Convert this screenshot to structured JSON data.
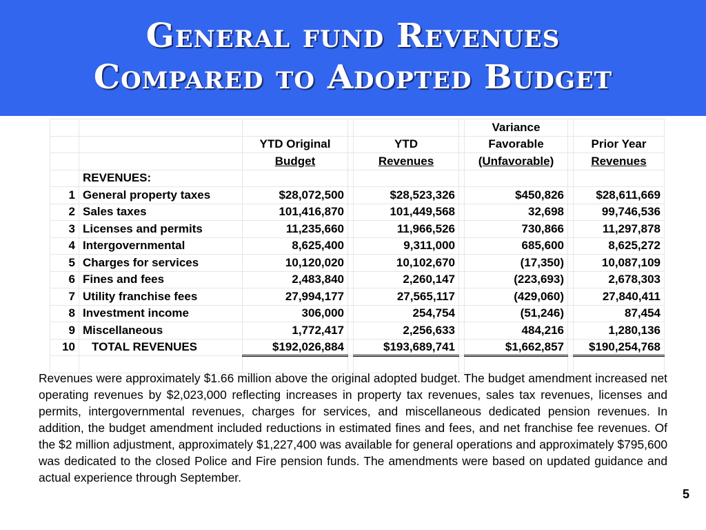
{
  "title": {
    "line1": "General fund Revenues",
    "line2": "Compared to Adopted Budget"
  },
  "table": {
    "headers": {
      "col1": [
        "",
        "YTD Original",
        "Budget"
      ],
      "col2": [
        "",
        "YTD",
        "Revenues"
      ],
      "col3": [
        "Variance",
        "Favorable",
        "(Unfavorable)"
      ],
      "col4": [
        "",
        "Prior Year",
        "Revenues"
      ]
    },
    "section_label": "REVENUES:",
    "rows": [
      {
        "num": "1",
        "desc": "General property taxes",
        "budget": "$28,072,500",
        "revenues": "$28,523,326",
        "variance": "$450,826",
        "prior": "$28,611,669"
      },
      {
        "num": "2",
        "desc": "Sales taxes",
        "budget": "101,416,870",
        "revenues": "101,449,568",
        "variance": "32,698",
        "prior": "99,746,536"
      },
      {
        "num": "3",
        "desc": "Licenses and permits",
        "budget": "11,235,660",
        "revenues": "11,966,526",
        "variance": "730,866",
        "prior": "11,297,878"
      },
      {
        "num": "4",
        "desc": "Intergovernmental",
        "budget": "8,625,400",
        "revenues": "9,311,000",
        "variance": "685,600",
        "prior": "8,625,272"
      },
      {
        "num": "5",
        "desc": "Charges for services",
        "budget": "10,120,020",
        "revenues": "10,102,670",
        "variance": "(17,350)",
        "prior": "10,087,109"
      },
      {
        "num": "6",
        "desc": "Fines and fees",
        "budget": "2,483,840",
        "revenues": "2,260,147",
        "variance": "(223,693)",
        "prior": "2,678,303"
      },
      {
        "num": "7",
        "desc": "Utility franchise fees",
        "budget": "27,994,177",
        "revenues": "27,565,117",
        "variance": "(429,060)",
        "prior": "27,840,411"
      },
      {
        "num": "8",
        "desc": "Investment income",
        "budget": "306,000",
        "revenues": "254,754",
        "variance": "(51,246)",
        "prior": "87,454"
      },
      {
        "num": "9",
        "desc": "Miscellaneous",
        "budget": "1,772,417",
        "revenues": "2,256,633",
        "variance": "484,216",
        "prior": "1,280,136"
      }
    ],
    "total": {
      "num": "10",
      "desc": "TOTAL REVENUES",
      "budget": "$192,026,884",
      "revenues": "$193,689,741",
      "variance": "$1,662,857",
      "prior": "$190,254,768"
    }
  },
  "paragraph": "Revenues were approximately $1.66 million above the original adopted budget. The budget amendment increased net operating revenues by $2,023,000 reflecting increases in property tax revenues, sales tax revenues, licenses and permits, intergovernmental revenues, charges for services, and miscellaneous dedicated pension revenues. In addition, the budget amendment included reductions in estimated fines and fees, and net franchise fee revenues. Of the $2 million adjustment, approximately $1,227,400 was available for general operations and approximately $795,600 was dedicated to the closed Police and Fire pension funds. The amendments were based on updated guidance and actual experience through September.",
  "page_number": "5",
  "colors": {
    "title_bar": "#3366ee",
    "title_text": "#ffffff"
  }
}
